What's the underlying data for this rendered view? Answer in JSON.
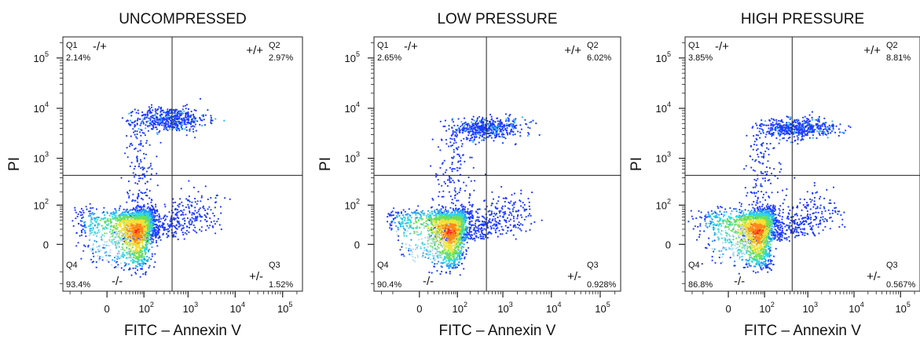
{
  "chart_data": [
    {
      "type": "scatter",
      "title": "UNCOMPRESSED",
      "xlabel": "FITC – Annexin V",
      "ylabel": "PI",
      "x_ticks": [
        "0",
        "10^2",
        "10^3",
        "10^4",
        "10^5"
      ],
      "y_ticks": [
        "0",
        "10^2",
        "10^3",
        "10^4",
        "10^5"
      ],
      "quadrants": [
        {
          "id": "Q1",
          "sign": "-/+",
          "percent": "2.14%"
        },
        {
          "id": "Q2",
          "sign": "+/+",
          "percent": "2.97%"
        },
        {
          "id": "Q3",
          "sign": "+/-",
          "percent": "1.52%"
        },
        {
          "id": "Q4",
          "sign": "-/-",
          "percent": "93.4%"
        }
      ],
      "series": [
        {
          "cx": 55,
          "cy": 15,
          "sx": 40,
          "sy": 25
        },
        {
          "cx": 400,
          "cy": 6000,
          "sx": 0.4,
          "sy": 0.12
        },
        {
          "cx": 150,
          "cy": 40,
          "sx": 0.5,
          "sy": 0.5
        }
      ]
    },
    {
      "type": "scatter",
      "title": "LOW PRESSURE",
      "xlabel": "FITC – Annexin V",
      "ylabel": "PI",
      "x_ticks": [
        "0",
        "10^2",
        "10^3",
        "10^4",
        "10^5"
      ],
      "y_ticks": [
        "0",
        "10^2",
        "10^3",
        "10^4",
        "10^5"
      ],
      "quadrants": [
        {
          "id": "Q1",
          "sign": "-/+",
          "percent": "2.65%"
        },
        {
          "id": "Q2",
          "sign": "+/+",
          "percent": "6.02%"
        },
        {
          "id": "Q3",
          "sign": "+/-",
          "percent": "0.928%"
        },
        {
          "id": "Q4",
          "sign": "-/-",
          "percent": "90.4%"
        }
      ],
      "series": [
        {
          "cx": 55,
          "cy": 15,
          "sx": 40,
          "sy": 25
        },
        {
          "cx": 450,
          "cy": 4000,
          "sx": 0.4,
          "sy": 0.1
        },
        {
          "cx": 150,
          "cy": 40,
          "sx": 0.5,
          "sy": 0.5
        }
      ]
    },
    {
      "type": "scatter",
      "title": "HIGH PRESSURE",
      "xlabel": "FITC – Annexin V",
      "ylabel": "PI",
      "x_ticks": [
        "0",
        "10^2",
        "10^3",
        "10^4",
        "10^5"
      ],
      "y_ticks": [
        "0",
        "10^2",
        "10^3",
        "10^4",
        "10^5"
      ],
      "quadrants": [
        {
          "id": "Q1",
          "sign": "-/+",
          "percent": "3.85%"
        },
        {
          "id": "Q2",
          "sign": "+/+",
          "percent": "8.81%"
        },
        {
          "id": "Q3",
          "sign": "+/-",
          "percent": "0.567%"
        },
        {
          "id": "Q4",
          "sign": "-/-",
          "percent": "86.8%"
        }
      ],
      "series": [
        {
          "cx": 55,
          "cy": 15,
          "sx": 40,
          "sy": 25
        },
        {
          "cx": 600,
          "cy": 4000,
          "sx": 0.4,
          "sy": 0.1
        },
        {
          "cx": 150,
          "cy": 40,
          "sx": 0.5,
          "sy": 0.5
        }
      ]
    }
  ]
}
